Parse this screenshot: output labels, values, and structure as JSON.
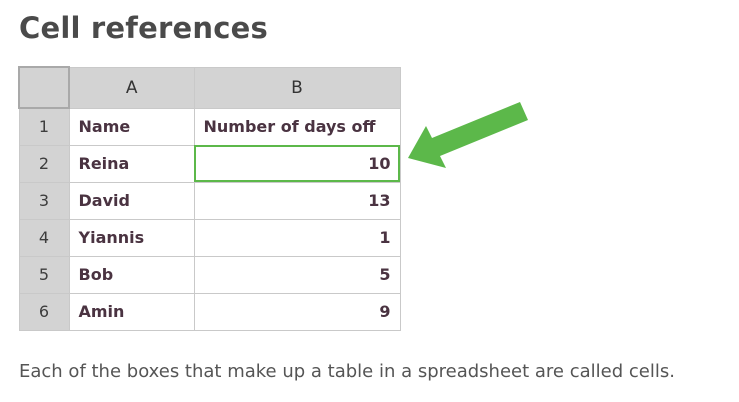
{
  "title": "Cell references",
  "sheet": {
    "columns": [
      "A",
      "B"
    ],
    "rows": [
      {
        "num": "1",
        "a": "Name",
        "b": "Number of days off"
      },
      {
        "num": "2",
        "a": "Reina",
        "b": "10"
      },
      {
        "num": "3",
        "a": "David",
        "b": "13"
      },
      {
        "num": "4",
        "a": "Yiannis",
        "b": "1"
      },
      {
        "num": "5",
        "a": "Bob",
        "b": "5"
      },
      {
        "num": "6",
        "a": "Amin",
        "b": "9"
      }
    ],
    "selected_cell": "B2"
  },
  "arrow": {
    "icon": "arrow-left-icon",
    "color": "#5cb84a"
  },
  "caption": "Each of the boxes that make up a table in a spreadsheet are called cells."
}
